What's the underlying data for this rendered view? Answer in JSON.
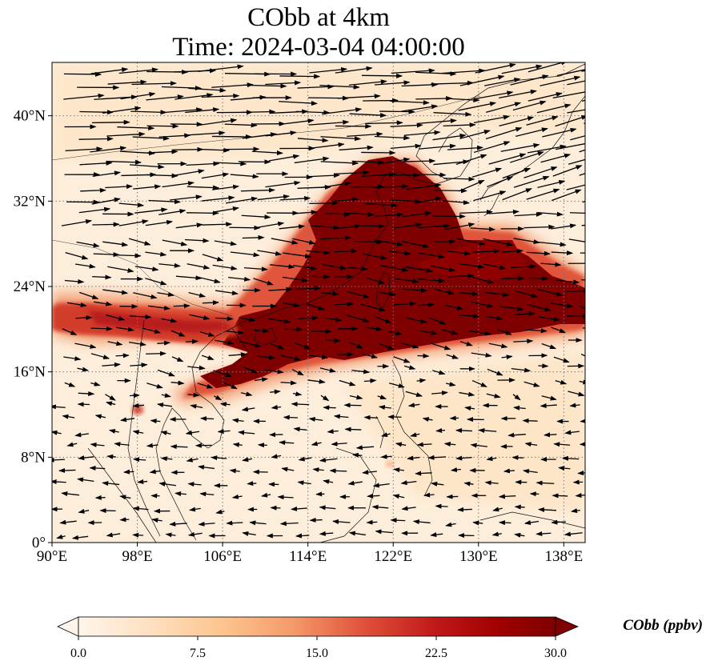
{
  "title": "CObb at 4km",
  "subtitle": "Time: 2024-03-04 04:00:00",
  "map": {
    "lon_range": [
      90,
      140
    ],
    "lat_range": [
      0,
      45
    ],
    "lon_ticks": [
      "90°E",
      "98°E",
      "106°E",
      "114°E",
      "122°E",
      "130°E",
      "138°E"
    ],
    "lat_ticks": [
      "0°",
      "8°N",
      "16°N",
      "24°N",
      "32°N",
      "40°N"
    ],
    "lon_tick_values": [
      90,
      98,
      106,
      114,
      122,
      130,
      138
    ],
    "lat_tick_values": [
      0,
      8,
      16,
      24,
      32,
      40
    ],
    "gridlines": true,
    "field": "CObb concentration with wind vectors"
  },
  "colorbar": {
    "label": "CObb (ppbv)",
    "ticks": [
      "0.0",
      "7.5",
      "15.0",
      "22.5",
      "30.0"
    ],
    "min": 0,
    "max": 30,
    "extend": "both",
    "colors": [
      "#fff5eb",
      "#fee6ce",
      "#fdd0a2",
      "#fdae6b",
      "#fd8d3c",
      "#f16913",
      "#d94801",
      "#a63603",
      "#7f2704"
    ]
  },
  "colors": {
    "background_low": "#fdeedb",
    "plume": "#7f0000"
  }
}
